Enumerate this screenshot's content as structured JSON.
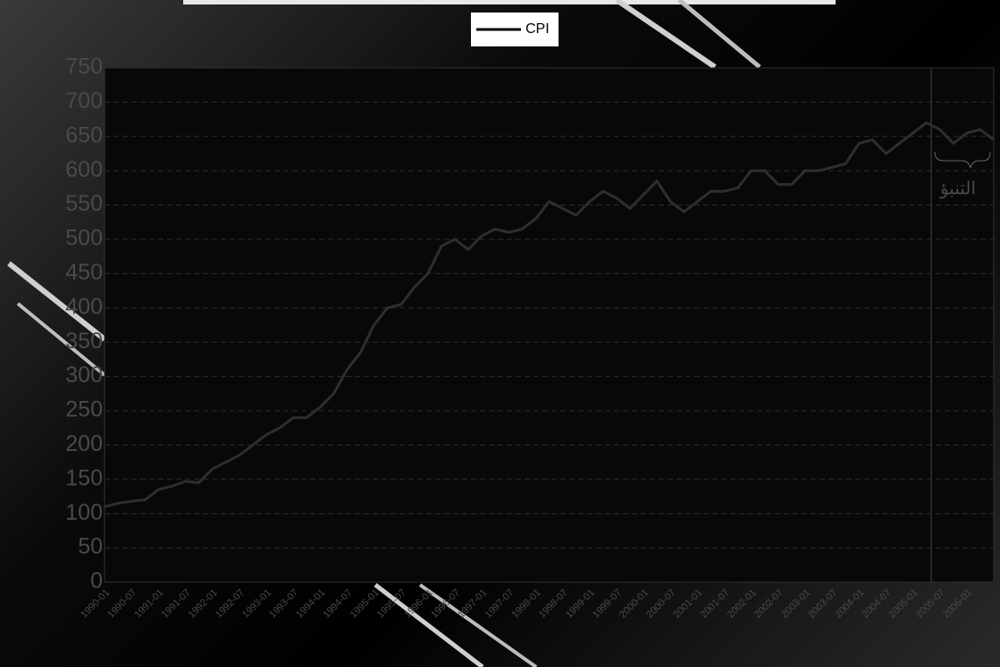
{
  "chart_data": {
    "type": "line",
    "legend": "top",
    "grid": true,
    "annotation": "التنبؤ",
    "categories": [
      "1990-01",
      null,
      "1990-07",
      null,
      "1991-01",
      null,
      "1991-07",
      null,
      "1992-01",
      null,
      "1992-07",
      null,
      "1993-01",
      null,
      "1993-07",
      null,
      "1994-01",
      null,
      "1994-07",
      null,
      "1995-01",
      null,
      "1995-07",
      null,
      "1996-01",
      null,
      "1996-07",
      null,
      "1997-01",
      null,
      "1997-07",
      null,
      "1998-01",
      null,
      "1998-07",
      null,
      "1999-01",
      null,
      "1999-07",
      null,
      "2000-01",
      null,
      "2000-07",
      null,
      "2001-01",
      null,
      "2001-07",
      null,
      "2002-01",
      null,
      "2002-07",
      null,
      "2003-01",
      null,
      "2003-07",
      null,
      "2004-01",
      null,
      "2004-07",
      null,
      "2005-01",
      null,
      "2005-07",
      null,
      "2006-01",
      null,
      null
    ],
    "series": [
      {
        "name": "CPI",
        "color": "#2e2e2e",
        "values": [
          110,
          115,
          118,
          120,
          135,
          140,
          147,
          145,
          165,
          175,
          185,
          200,
          215,
          225,
          240,
          240,
          255,
          275,
          310,
          335,
          375,
          400,
          405,
          430,
          450,
          490,
          500,
          485,
          505,
          515,
          510,
          515,
          530,
          555,
          545,
          535,
          555,
          570,
          560,
          545,
          565,
          585,
          555,
          540,
          555,
          570,
          570,
          575,
          600,
          600,
          580,
          580,
          600,
          600,
          605,
          610,
          640,
          645,
          625,
          640,
          655,
          670,
          660,
          640,
          655,
          660,
          645
        ]
      }
    ],
    "ylim": [
      0,
      750
    ],
    "yticks": [
      0,
      50,
      100,
      150,
      200,
      250,
      300,
      350,
      400,
      450,
      500,
      550,
      600,
      650,
      700,
      750
    ]
  }
}
